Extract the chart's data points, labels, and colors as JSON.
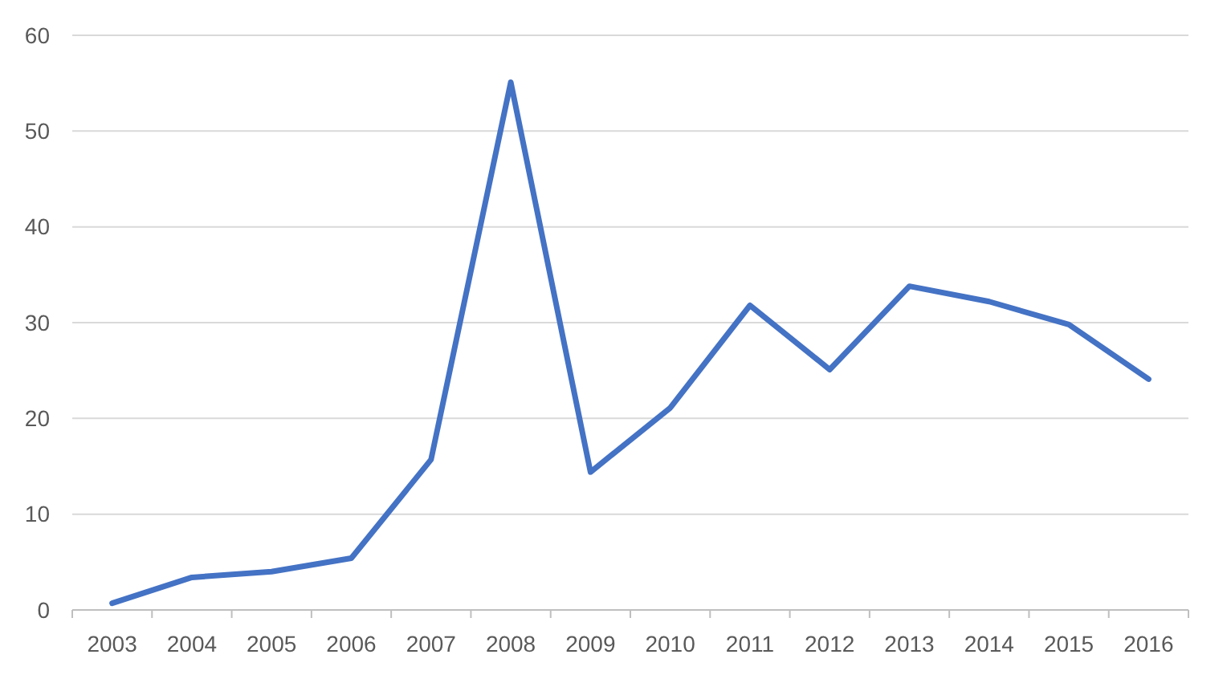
{
  "chart_data": {
    "type": "line",
    "categories": [
      "2003",
      "2004",
      "2005",
      "2006",
      "2007",
      "2008",
      "2009",
      "2010",
      "2011",
      "2012",
      "2013",
      "2014",
      "2015",
      "2016"
    ],
    "series": [
      {
        "color": "#4472c4",
        "values": [
          0.7,
          3.4,
          4.0,
          5.4,
          15.7,
          55.1,
          14.4,
          21.1,
          31.8,
          25.1,
          33.8,
          32.2,
          29.8,
          24.1
        ]
      }
    ],
    "ylim": [
      0,
      60
    ],
    "yticks": [
      0,
      10,
      20,
      30,
      40,
      50,
      60
    ],
    "grid": "y",
    "marker": "none",
    "line_style": "solid"
  }
}
